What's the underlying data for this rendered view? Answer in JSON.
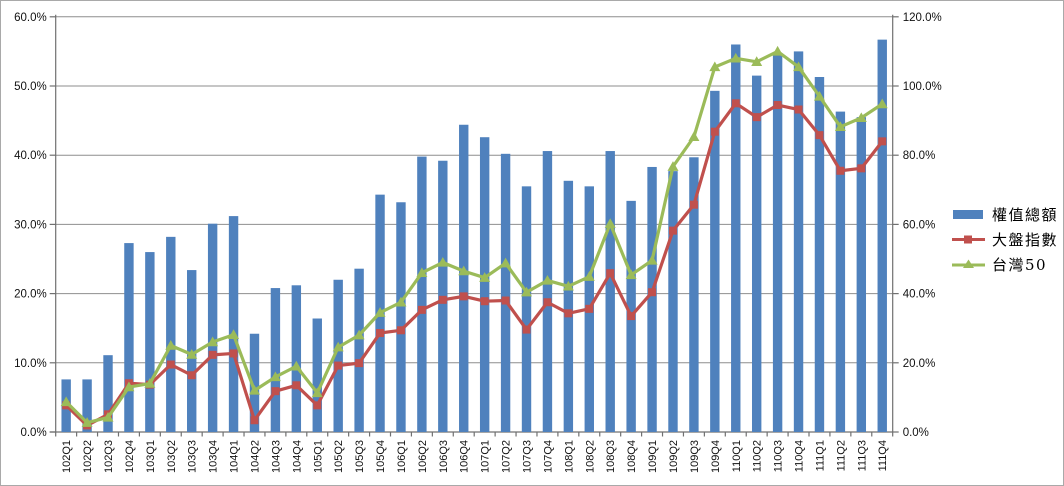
{
  "chart_data": {
    "type": "bar",
    "subtype": "bar-line-combo",
    "title": "",
    "categories": [
      "102Q1",
      "102Q2",
      "102Q3",
      "102Q4",
      "103Q1",
      "103Q2",
      "103Q3",
      "103Q4",
      "104Q1",
      "104Q2",
      "104Q3",
      "104Q4",
      "105Q1",
      "105Q2",
      "105Q3",
      "105Q4",
      "106Q1",
      "106Q2",
      "106Q3",
      "106Q4",
      "107Q1",
      "107Q2",
      "107Q3",
      "107Q4",
      "108Q1",
      "108Q2",
      "108Q3",
      "108Q4",
      "109Q1",
      "109Q2",
      "109Q3",
      "109Q4",
      "110Q1",
      "110Q2",
      "110Q3",
      "110Q4",
      "111Q1",
      "111Q2",
      "111Q3",
      "111Q4"
    ],
    "series": [
      {
        "name": "權值總額",
        "chart_type": "bar",
        "axis": "left",
        "color": "#4f81bd",
        "values": [
          7.6,
          7.6,
          11.1,
          27.3,
          26.0,
          28.2,
          23.4,
          30.1,
          31.2,
          14.2,
          20.8,
          21.2,
          16.4,
          22.0,
          23.6,
          34.3,
          33.2,
          39.8,
          39.2,
          44.4,
          42.6,
          40.2,
          35.5,
          40.6,
          36.3,
          35.5,
          40.6,
          33.4,
          38.3,
          37.7,
          39.7,
          49.3,
          56.0,
          51.5,
          54.7,
          55.0,
          51.3,
          46.3,
          45.5,
          56.7
        ]
      },
      {
        "name": "大盤指數",
        "chart_type": "line",
        "marker": "square",
        "axis": "right",
        "color": "#c0504d",
        "values": [
          7.7,
          1.9,
          5.1,
          14.1,
          13.7,
          19.5,
          16.4,
          22.3,
          22.7,
          3.4,
          11.8,
          13.5,
          7.7,
          19.2,
          19.9,
          28.6,
          29.4,
          35.3,
          38.2,
          39.2,
          37.8,
          38.0,
          29.6,
          37.5,
          34.3,
          35.6,
          45.9,
          33.5,
          40.4,
          58.2,
          65.7,
          86.8,
          95.0,
          91.0,
          94.5,
          93.2,
          85.8,
          75.5,
          76.2,
          84.0
        ]
      },
      {
        "name": "台灣50",
        "chart_type": "line",
        "marker": "triangle",
        "axis": "right",
        "color": "#9bbb59",
        "values": [
          8.7,
          2.7,
          4.2,
          13.0,
          14.0,
          25.0,
          22.4,
          26.0,
          28.1,
          12.0,
          15.9,
          19.0,
          11.3,
          24.5,
          28.0,
          34.5,
          37.5,
          46.0,
          49.0,
          46.5,
          44.6,
          48.8,
          40.4,
          43.8,
          42.1,
          44.9,
          60.2,
          45.4,
          49.6,
          76.7,
          85.3,
          105.5,
          108.0,
          107.0,
          110.0,
          105.5,
          97.0,
          88.2,
          90.8,
          94.8
        ]
      }
    ],
    "left_axis": {
      "min": 0,
      "max": 60,
      "step": 10,
      "tick_labels": [
        "0.0%",
        "10.0%",
        "20.0%",
        "30.0%",
        "40.0%",
        "50.0%",
        "60.0%"
      ]
    },
    "right_axis": {
      "min": 0,
      "max": 120,
      "step": 20,
      "tick_labels": [
        "0.0%",
        "20.0%",
        "40.0%",
        "60.0%",
        "80.0%",
        "100.0%",
        "120.0%"
      ]
    },
    "grid": true,
    "legend_position": "right"
  },
  "colors": {
    "bar": "#4f81bd",
    "line_red": "#c0504d",
    "line_green": "#9bbb59",
    "gridline": "#8e8e8e",
    "axis": "#707070",
    "text": "#111111"
  }
}
